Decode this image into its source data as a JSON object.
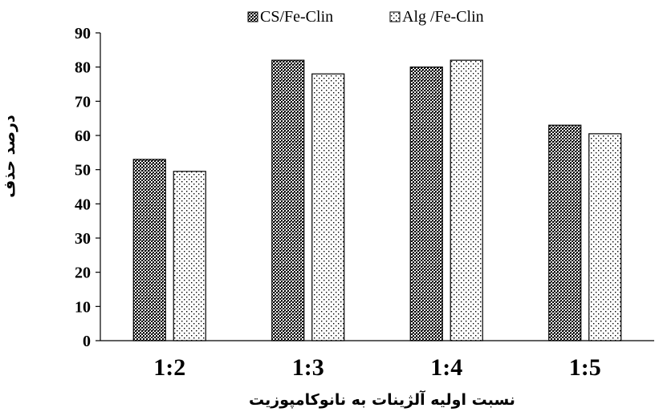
{
  "chart_data": {
    "type": "bar",
    "categories": [
      "1:2",
      "1:3",
      "1:4",
      "1:5"
    ],
    "series": [
      {
        "name": "CS/Fe-Clin",
        "values": [
          53,
          82,
          80,
          63
        ],
        "pattern": "dense-dark",
        "color": "#000000"
      },
      {
        "name": "Alg /Fe-Clin",
        "values": [
          49.5,
          78,
          82,
          60.5
        ],
        "pattern": "light-dots",
        "color": "#000000"
      }
    ],
    "xlabel": "نسبت اولیه آلژینات به نانوکامپوزیت",
    "ylabel": "درصد حذف",
    "ylim": [
      0,
      90
    ],
    "yticks": [
      0,
      10,
      20,
      30,
      40,
      50,
      60,
      70,
      80,
      90
    ],
    "grid": false,
    "legend_position": "top-center"
  }
}
